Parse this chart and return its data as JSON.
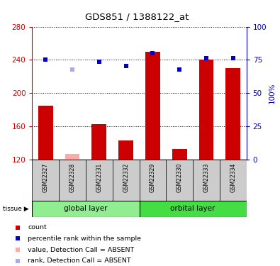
{
  "title": "GDS851 / 1388122_at",
  "samples": [
    "GSM22327",
    "GSM22328",
    "GSM22331",
    "GSM22332",
    "GSM22329",
    "GSM22330",
    "GSM22333",
    "GSM22334"
  ],
  "group_labels": [
    "global layer",
    "orbital layer"
  ],
  "absent_flags": [
    false,
    true,
    false,
    false,
    false,
    false,
    false,
    false
  ],
  "bar_values": [
    185,
    127,
    163,
    143,
    250,
    133,
    240,
    230
  ],
  "rank_values": [
    240,
    228,
    238,
    233,
    248,
    228,
    242,
    242
  ],
  "ylim_left": [
    120,
    280
  ],
  "ylim_right": [
    0,
    100
  ],
  "yticks_left": [
    120,
    160,
    200,
    240,
    280
  ],
  "yticks_right": [
    0,
    25,
    50,
    75,
    100
  ],
  "bar_color_present": "#cc0000",
  "bar_color_absent": "#ffaaaa",
  "rank_color_present": "#0000cc",
  "rank_color_absent": "#aaaaee",
  "group_bg_left": "#90ee90",
  "group_bg_right": "#44dd44",
  "sample_bg": "#cccccc",
  "left_axis_color": "#cc0000",
  "right_axis_color": "#0000bb",
  "tissue_label": "tissue",
  "legend_items": [
    {
      "label": "count",
      "color": "#cc0000"
    },
    {
      "label": "percentile rank within the sample",
      "color": "#0000cc"
    },
    {
      "label": "value, Detection Call = ABSENT",
      "color": "#ffaaaa"
    },
    {
      "label": "rank, Detection Call = ABSENT",
      "color": "#aaaaee"
    }
  ]
}
